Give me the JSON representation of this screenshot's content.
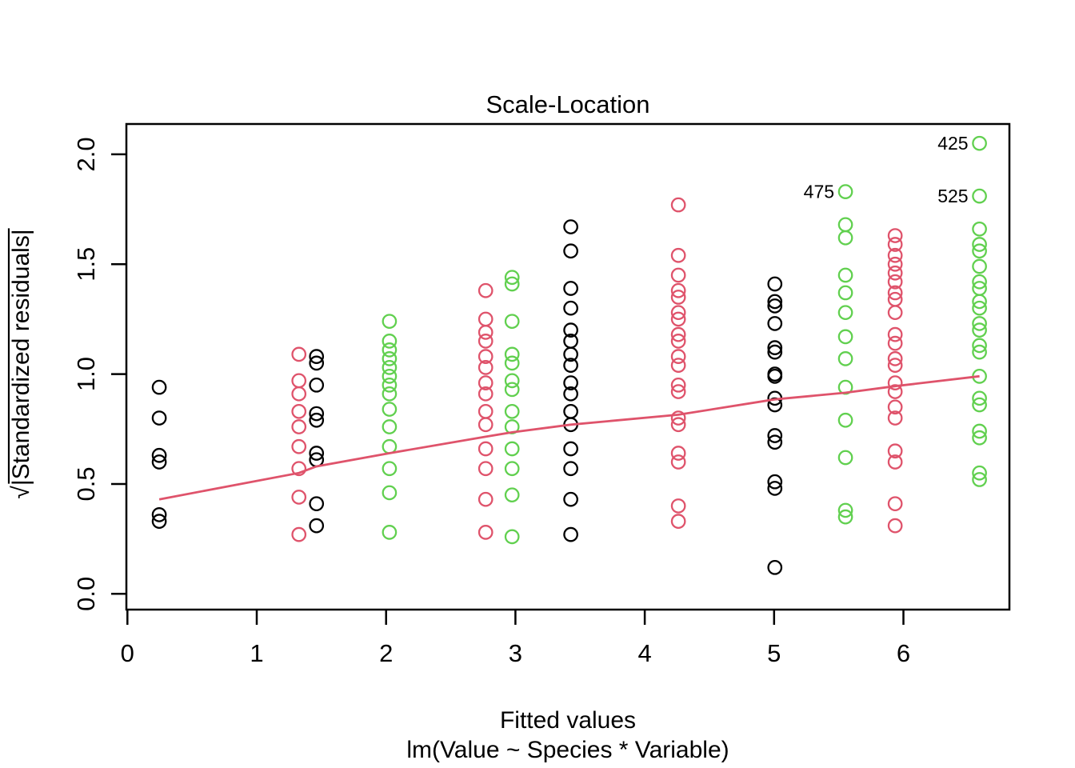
{
  "figure": {
    "title": "Scale-Location",
    "x_axis": {
      "label": "Fitted values",
      "sub_label": "lm(Value ~ Species * Variable)"
    },
    "y_axis": {
      "label": "√|Standardized residuals|"
    }
  },
  "chart_data": {
    "type": "scatter",
    "title": "Scale-Location",
    "xlabel": "Fitted values",
    "xlabel_model_caption": "lm(Value ~ Species * Variable)",
    "ylabel": "sqrt(|Standardized residuals|)",
    "xlim": [
      -0.01,
      6.82
    ],
    "ylim": [
      -0.07,
      2.14
    ],
    "x_ticks": [
      0,
      1,
      2,
      3,
      4,
      5,
      6
    ],
    "y_ticks": [
      0.0,
      0.5,
      1.0,
      1.5,
      2.0
    ],
    "grid": false,
    "legend": null,
    "marker": "open-circle",
    "colors": {
      "black": "#000000",
      "red": "#DF536B",
      "green": "#61D04F"
    },
    "series": [
      {
        "name": "group-x0.25-black",
        "color": "black",
        "x": 0.246,
        "y": [
          0.94,
          0.8,
          0.63,
          0.6,
          0.36,
          0.33
        ]
      },
      {
        "name": "group-x1.33-red",
        "color": "red",
        "x": 1.326,
        "y": [
          1.09,
          0.97,
          0.91,
          0.83,
          0.76,
          0.67,
          0.57,
          0.44,
          0.27
        ]
      },
      {
        "name": "group-x1.46-black",
        "color": "black",
        "x": 1.462,
        "y": [
          1.08,
          1.05,
          0.95,
          0.82,
          0.79,
          0.64,
          0.61,
          0.41,
          0.31
        ]
      },
      {
        "name": "group-x2.03-green",
        "color": "green",
        "x": 2.026,
        "y": [
          1.24,
          1.15,
          1.11,
          1.07,
          1.03,
          0.99,
          0.95,
          0.91,
          0.84,
          0.76,
          0.67,
          0.57,
          0.46,
          0.28
        ]
      },
      {
        "name": "group-x2.77-red",
        "color": "red",
        "x": 2.77,
        "y": [
          1.38,
          1.25,
          1.19,
          1.15,
          1.08,
          1.03,
          0.96,
          0.91,
          0.83,
          0.77,
          0.66,
          0.57,
          0.43,
          0.28
        ]
      },
      {
        "name": "group-x2.97-green",
        "color": "green",
        "x": 2.974,
        "y": [
          1.44,
          1.41,
          1.24,
          1.09,
          1.05,
          0.97,
          0.93,
          0.83,
          0.76,
          0.66,
          0.57,
          0.45,
          0.26
        ]
      },
      {
        "name": "group-x3.43-black",
        "color": "black",
        "x": 3.428,
        "y": [
          1.67,
          1.56,
          1.39,
          1.3,
          1.2,
          1.15,
          1.09,
          1.04,
          0.96,
          0.91,
          0.83,
          0.77,
          0.66,
          0.57,
          0.43,
          0.27
        ]
      },
      {
        "name": "group-x4.26-red",
        "color": "red",
        "x": 4.26,
        "y": [
          1.77,
          1.54,
          1.45,
          1.38,
          1.35,
          1.28,
          1.25,
          1.18,
          1.15,
          1.08,
          1.04,
          0.95,
          0.92,
          0.8,
          0.77,
          0.64,
          0.6,
          0.4,
          0.33
        ]
      },
      {
        "name": "group-x5.01-black",
        "color": "black",
        "x": 5.006,
        "y": [
          1.41,
          1.33,
          1.31,
          1.23,
          1.12,
          1.1,
          1.0,
          0.99,
          0.89,
          0.86,
          0.72,
          0.69,
          0.51,
          0.48,
          0.12
        ]
      },
      {
        "name": "group-x5.55-green",
        "color": "green",
        "x": 5.552,
        "y": [
          1.83,
          1.68,
          1.62,
          1.45,
          1.37,
          1.28,
          1.17,
          1.07,
          0.94,
          0.79,
          0.62,
          0.38,
          0.35
        ]
      },
      {
        "name": "group-x5.94-red",
        "color": "red",
        "x": 5.936,
        "y": [
          1.63,
          1.59,
          1.54,
          1.5,
          1.46,
          1.42,
          1.37,
          1.34,
          1.28,
          1.18,
          1.14,
          1.07,
          1.04,
          0.96,
          0.92,
          0.85,
          0.8,
          0.65,
          0.6,
          0.41,
          0.31
        ]
      },
      {
        "name": "group-x6.59-green",
        "color": "green",
        "x": 6.588,
        "y": [
          2.05,
          1.81,
          1.66,
          1.59,
          1.56,
          1.49,
          1.42,
          1.39,
          1.33,
          1.3,
          1.23,
          1.2,
          1.13,
          1.1,
          0.99,
          0.89,
          0.86,
          0.74,
          0.71,
          0.55,
          0.52
        ]
      }
    ],
    "smooth_line": {
      "color": "#DF536B",
      "points": [
        [
          0.246,
          0.43
        ],
        [
          1.326,
          0.55
        ],
        [
          1.462,
          0.58
        ],
        [
          2.026,
          0.64
        ],
        [
          2.77,
          0.715
        ],
        [
          2.974,
          0.735
        ],
        [
          3.428,
          0.77
        ],
        [
          4.26,
          0.815
        ],
        [
          5.006,
          0.885
        ],
        [
          5.552,
          0.915
        ],
        [
          5.936,
          0.945
        ],
        [
          6.588,
          0.99
        ]
      ]
    },
    "labeled_points": [
      {
        "label": "425",
        "x": 6.588,
        "y": 2.05
      },
      {
        "label": "475",
        "x": 5.552,
        "y": 1.83
      },
      {
        "label": "525",
        "x": 6.588,
        "y": 1.81
      }
    ]
  }
}
